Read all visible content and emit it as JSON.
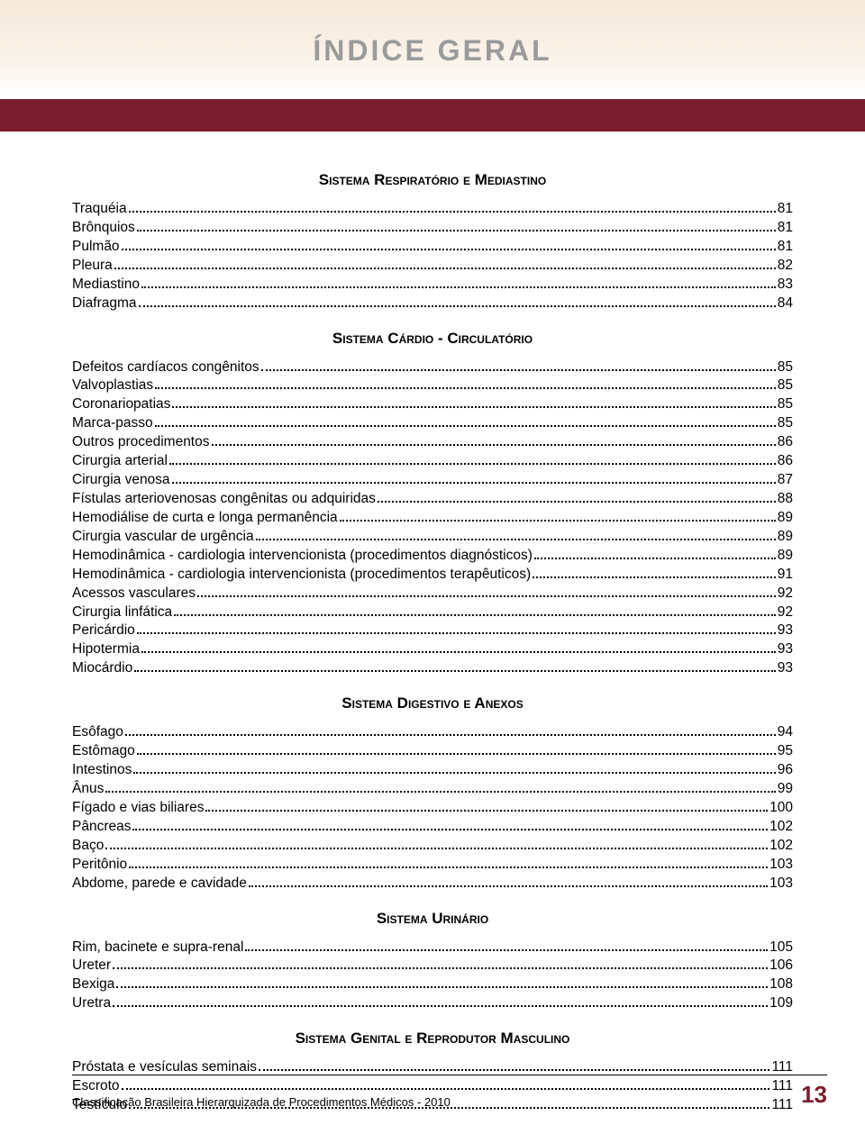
{
  "title": "ÍNDICE GERAL",
  "footer_text": "Classificação Brasileira Hierarquizada de Procedimentos Médicos - 2010",
  "footer_page": "13",
  "colors": {
    "red_bar": "#7a1c2c",
    "title_gray": "#9b9b9b",
    "gradient_top": "#f5e8d8"
  },
  "sections": [
    {
      "heading": "Sistema Respiratório e Mediastino",
      "items": [
        {
          "label": "Traquéia",
          "page": "81"
        },
        {
          "label": "Brônquios",
          "page": "81"
        },
        {
          "label": "Pulmão",
          "page": "81"
        },
        {
          "label": "Pleura",
          "page": "82"
        },
        {
          "label": "Mediastino",
          "page": "83"
        },
        {
          "label": "Diafragma",
          "page": "84"
        }
      ]
    },
    {
      "heading": "Sistema Cárdio - Circulatório",
      "items": [
        {
          "label": "Defeitos cardíacos congênitos",
          "page": "85"
        },
        {
          "label": "Valvoplastias",
          "page": "85"
        },
        {
          "label": "Coronariopatias",
          "page": "85"
        },
        {
          "label": "Marca-passo",
          "page": "85"
        },
        {
          "label": "Outros procedimentos",
          "page": "86"
        },
        {
          "label": "Cirurgia arterial",
          "page": "86"
        },
        {
          "label": "Cirurgia venosa",
          "page": "87"
        },
        {
          "label": "Fístulas arteriovenosas congênitas ou adquiridas",
          "page": "88"
        },
        {
          "label": "Hemodiálise de curta e longa permanência",
          "page": "89"
        },
        {
          "label": "Cirurgia vascular de urgência",
          "page": "89"
        },
        {
          "label": "Hemodinâmica - cardiologia intervencionista (procedimentos diagnósticos)",
          "page": "89"
        },
        {
          "label": "Hemodinâmica - cardiologia intervencionista (procedimentos terapêuticos)",
          "page": "91"
        },
        {
          "label": "Acessos vasculares",
          "page": "92"
        },
        {
          "label": "Cirurgia linfática",
          "page": "92"
        },
        {
          "label": "Pericárdio",
          "page": "93"
        },
        {
          "label": "Hipotermia",
          "page": "93"
        },
        {
          "label": "Miocárdio",
          "page": "93"
        }
      ]
    },
    {
      "heading": "Sistema Digestivo e Anexos",
      "items": [
        {
          "label": "Esôfago",
          "page": "94"
        },
        {
          "label": "Estômago",
          "page": "95"
        },
        {
          "label": "Intestinos",
          "page": "96"
        },
        {
          "label": "Ânus",
          "page": "99"
        },
        {
          "label": "Fígado e vias biliares",
          "page": "100"
        },
        {
          "label": "Pâncreas",
          "page": "102"
        },
        {
          "label": "Baço",
          "page": "102"
        },
        {
          "label": "Peritônio",
          "page": "103"
        },
        {
          "label": "Abdome, parede e cavidade",
          "page": "103"
        }
      ]
    },
    {
      "heading": "Sistema Urinário",
      "items": [
        {
          "label": "Rim, bacinete e supra-renal",
          "page": "105"
        },
        {
          "label": "Ureter",
          "page": "106"
        },
        {
          "label": "Bexiga",
          "page": "108"
        },
        {
          "label": "Uretra",
          "page": "109"
        }
      ]
    },
    {
      "heading": "Sistema Genital e Reprodutor Masculino",
      "items": [
        {
          "label": "Próstata e vesículas seminais",
          "page": " 111"
        },
        {
          "label": "Escroto",
          "page": " 111"
        },
        {
          "label": "Testículo",
          "page": " 111"
        }
      ]
    }
  ]
}
